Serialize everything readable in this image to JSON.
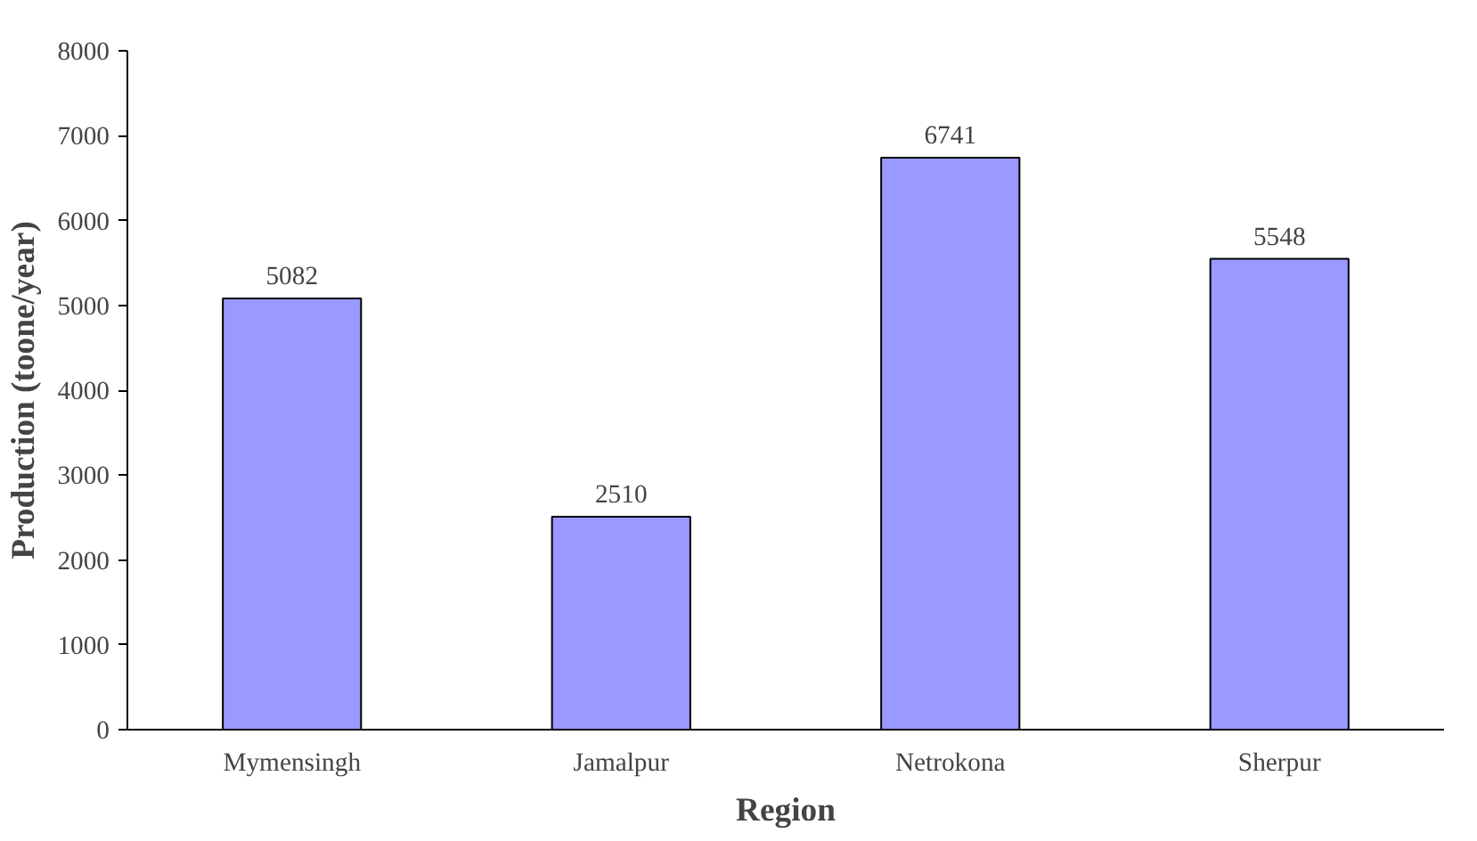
{
  "chart_data": {
    "type": "bar",
    "xlabel": "Region",
    "ylabel": "Production (toone/year)",
    "categories": [
      "Mymensingh",
      "Jamalpur",
      "Netrokona",
      "Sherpur"
    ],
    "values": [
      5082,
      2510,
      6741,
      5548
    ],
    "color": "#9999ff",
    "ylim": [
      0,
      8000
    ],
    "yticks": [
      0,
      1000,
      2000,
      3000,
      4000,
      5000,
      6000,
      7000,
      8000
    ],
    "data_labels": true,
    "grid": false
  }
}
